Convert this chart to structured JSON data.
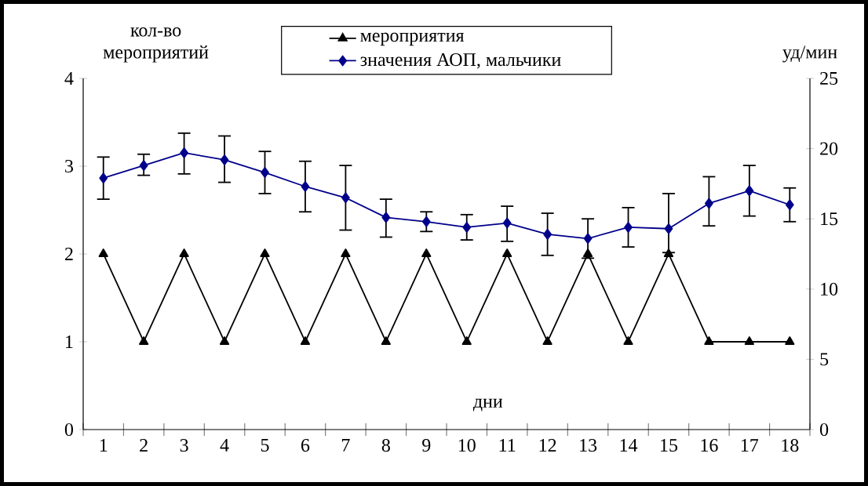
{
  "chart_data": {
    "type": "line",
    "xlabel": "дни",
    "ylabel": "кол-во мероприятий",
    "y2label": "уд/мин",
    "categories": [
      "1",
      "2",
      "3",
      "4",
      "5",
      "6",
      "7",
      "8",
      "9",
      "10",
      "11",
      "12",
      "13",
      "14",
      "15",
      "16",
      "17",
      "18"
    ],
    "series": [
      {
        "name": "мероприятия",
        "color": "#000000",
        "marker": "triangle",
        "values": [
          2,
          1,
          2,
          1,
          2,
          1,
          2,
          1,
          2,
          1,
          2,
          1,
          2,
          1,
          2,
          1,
          1,
          1
        ]
      },
      {
        "name": "значения АОП, мальчики",
        "color": "#00008b",
        "marker": "diamond",
        "axis": "y2",
        "values": [
          17.9,
          18.8,
          19.7,
          19.2,
          18.3,
          17.3,
          16.5,
          15.1,
          14.8,
          14.4,
          14.7,
          13.9,
          13.6,
          14.4,
          14.3,
          16.1,
          17.0,
          16.0
        ],
        "errors": [
          [
            16.4,
            19.4
          ],
          [
            18.1,
            19.6
          ],
          [
            18.2,
            21.1
          ],
          [
            17.6,
            20.9
          ],
          [
            16.8,
            19.8
          ],
          [
            15.5,
            19.1
          ],
          [
            14.2,
            18.8
          ],
          [
            13.7,
            16.4
          ],
          [
            14.1,
            15.5
          ],
          [
            13.5,
            15.3
          ],
          [
            13.4,
            15.9
          ],
          [
            12.4,
            15.4
          ],
          [
            12.2,
            15.0
          ],
          [
            13.0,
            15.8
          ],
          [
            12.6,
            16.8
          ],
          [
            14.5,
            18.0
          ],
          [
            15.2,
            18.8
          ],
          [
            14.8,
            17.2
          ]
        ]
      }
    ],
    "ylim": [
      0,
      4
    ],
    "yticks": [
      0,
      1,
      2,
      3,
      4
    ],
    "y2lim": [
      0,
      25
    ],
    "y2ticks": [
      0,
      5,
      10,
      15,
      20,
      25
    ],
    "legend": "top",
    "grid": false,
    "line_style": "solid"
  }
}
